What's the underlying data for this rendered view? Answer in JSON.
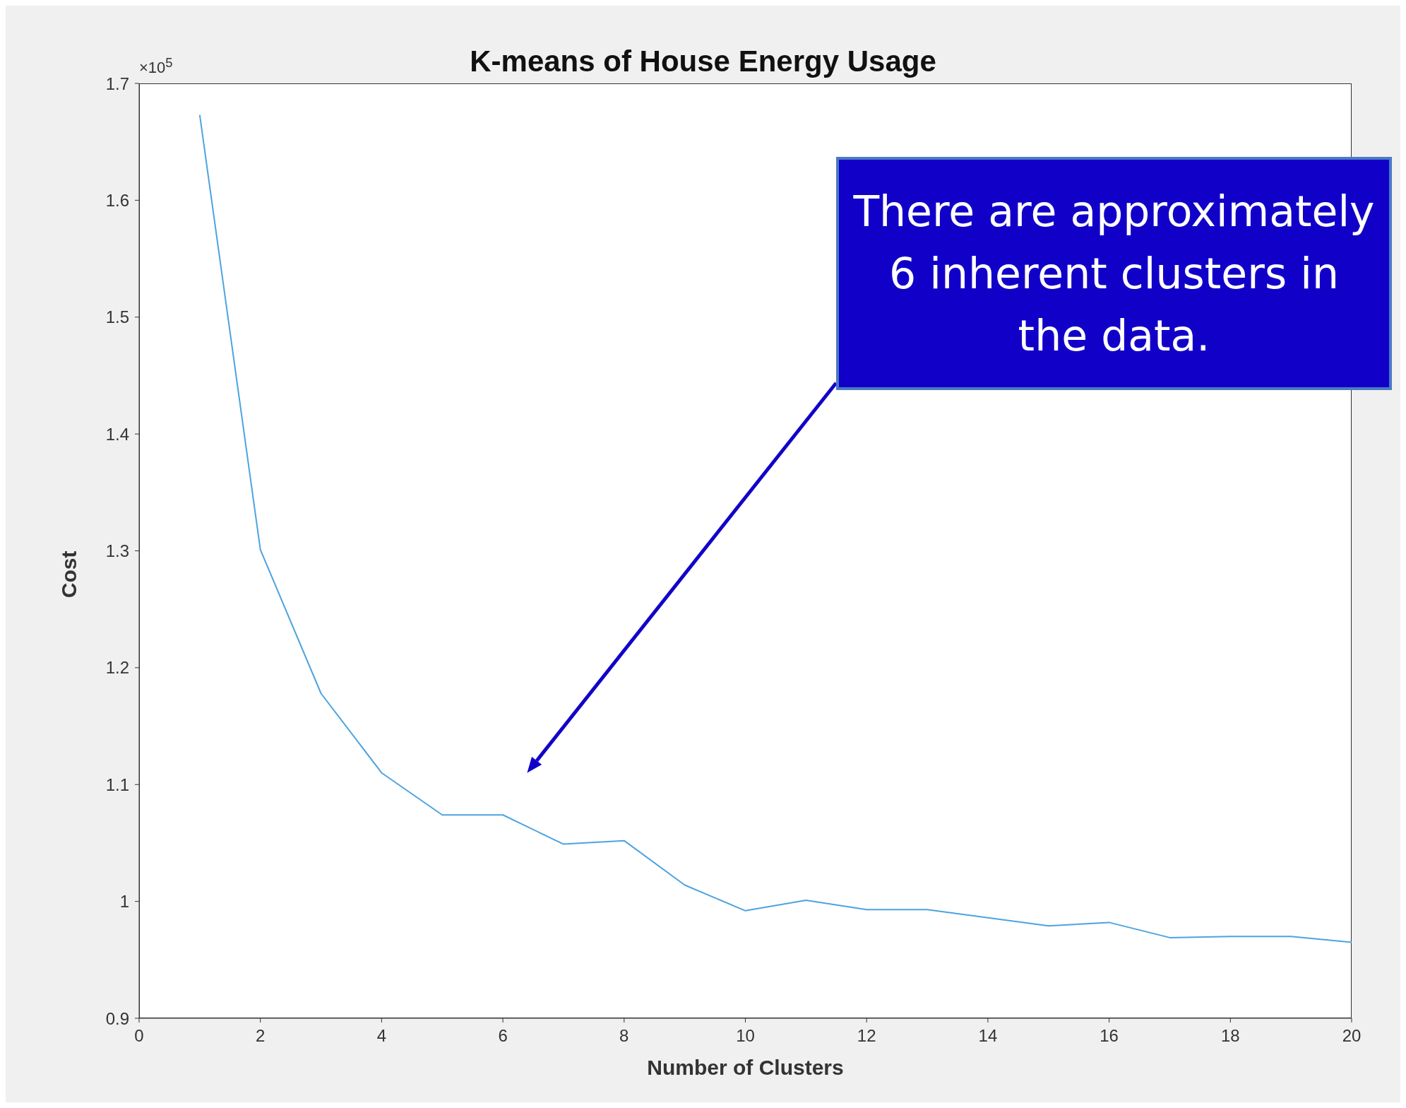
{
  "chart_data": {
    "type": "line",
    "title": "K-means of House Energy Usage",
    "xlabel": "Number of Clusters",
    "ylabel": "Cost",
    "x": [
      1,
      2,
      3,
      4,
      5,
      6,
      7,
      8,
      9,
      10,
      11,
      12,
      13,
      14,
      15,
      16,
      17,
      18,
      19,
      20
    ],
    "series": [
      {
        "color": "#4da3e0",
        "values": [
          1.673,
          1.301,
          1.178,
          1.11,
          1.074,
          1.074,
          1.049,
          1.052,
          1.014,
          0.992,
          1.001,
          0.993,
          0.993,
          0.986,
          0.979,
          0.982,
          0.969,
          0.97,
          0.97,
          0.965
        ]
      }
    ],
    "xlim": [
      0,
      20
    ],
    "xticks": [
      0,
      2,
      4,
      6,
      8,
      10,
      12,
      14,
      16,
      18,
      20
    ],
    "ylim": [
      0.9,
      1.7
    ],
    "yticks": [
      0.9,
      {
        "value": 1,
        "label": "1"
      },
      1.1,
      1.2,
      1.3,
      1.4,
      1.5,
      1.6,
      1.7
    ],
    "grid": false,
    "legend": false,
    "marker": "none",
    "line_style": "solid",
    "annotations": [
      "×10$^{5}$",
      "There are approximately 6 inherent clusters in the data."
    ]
  }
}
